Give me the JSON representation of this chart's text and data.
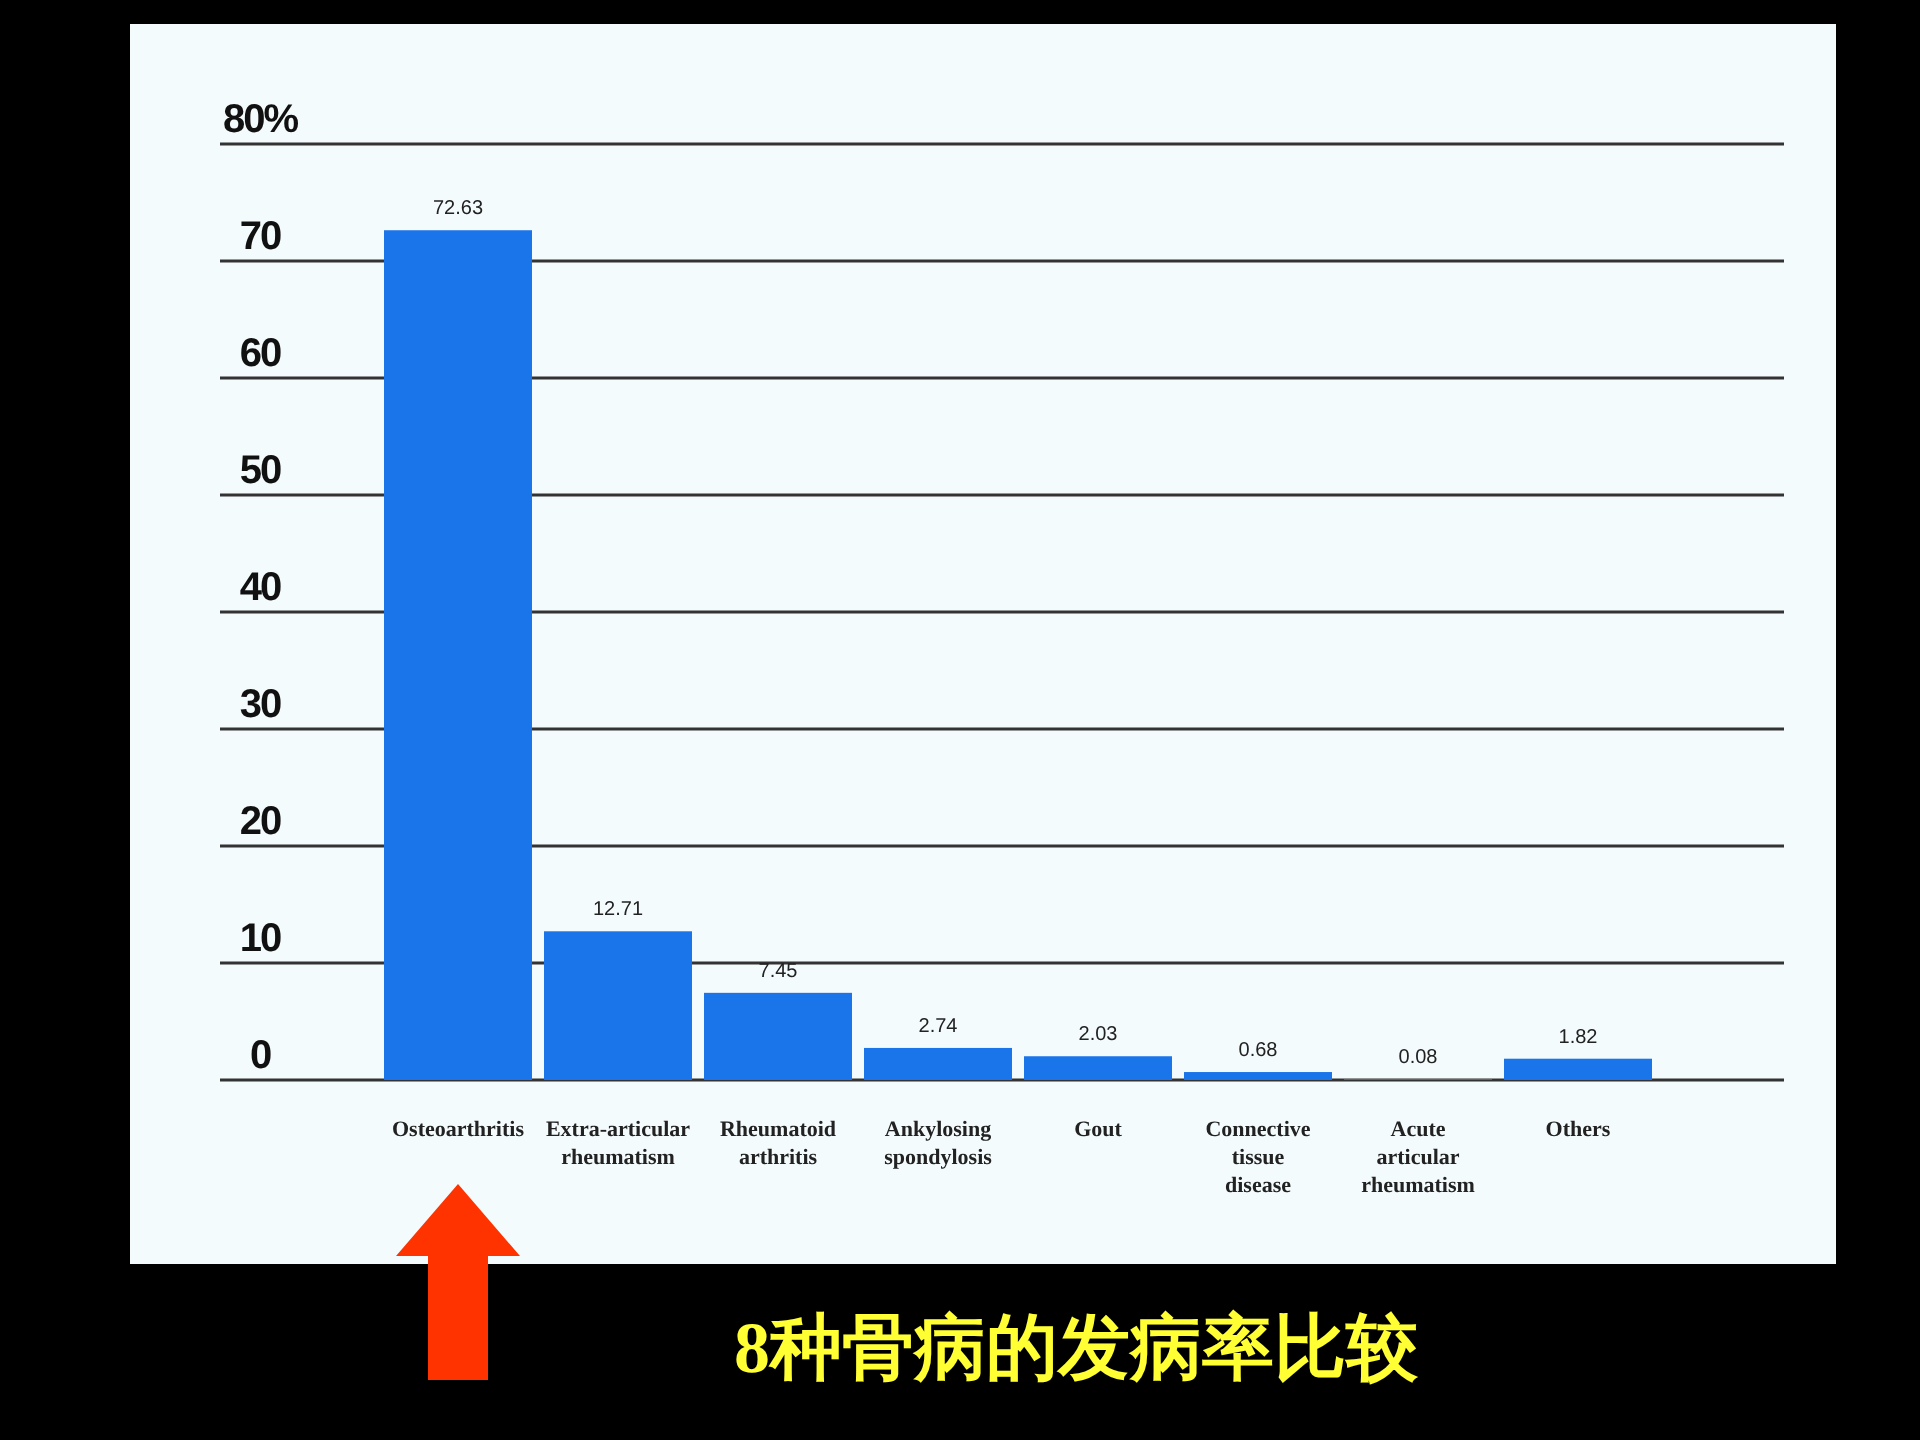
{
  "chart_data": {
    "type": "bar",
    "title": "8种骨病的发病率比较",
    "categories": [
      "Osteoarthritis",
      "Extra-articular rheumatism",
      "Rheumatoid arthritis",
      "Ankylosing spondylosis",
      "Gout",
      "Connective tissue disease",
      "Acute articular rheumatism",
      "Others"
    ],
    "values": [
      72.63,
      12.71,
      7.45,
      2.74,
      2.03,
      0.68,
      0.08,
      1.82
    ],
    "color": "#1a74ea",
    "ylim": [
      0,
      80
    ],
    "yticks": [
      0,
      10,
      20,
      30,
      40,
      50,
      60,
      70,
      {
        "value": 80,
        "label": "80%"
      }
    ],
    "grid": "y",
    "data_labels": true
  }
}
